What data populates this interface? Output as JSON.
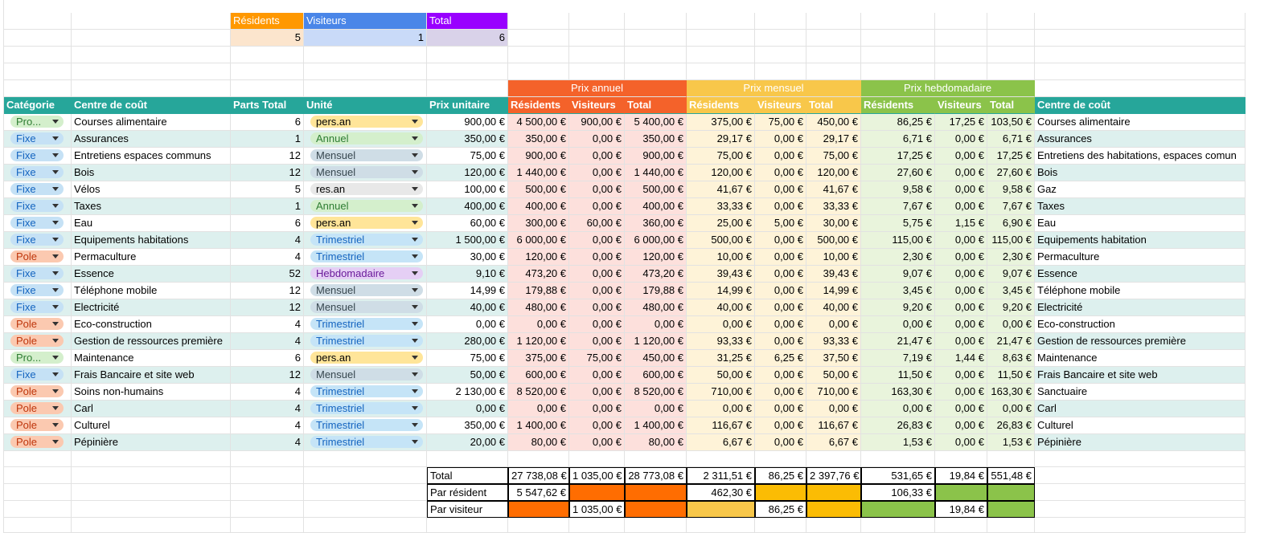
{
  "summary_top": {
    "headers": [
      "Résidents",
      "Visiteurs",
      "Total"
    ],
    "values": [
      "5",
      "1",
      "6"
    ],
    "header_colors": [
      "#ff9800",
      "#4a86e8",
      "#9900ff"
    ],
    "value_colors": [
      "#fce5cd",
      "#c9daf8",
      "#d9d2e9"
    ]
  },
  "groups": [
    {
      "label": "Prix annuel",
      "color": "#f4622a"
    },
    {
      "label": "Prix mensuel",
      "color": "#f8c74a"
    },
    {
      "label": "Prix hebdomadaire",
      "color": "#8bc34a"
    }
  ],
  "headers": [
    "Catégorie",
    "Centre de coût",
    "Parts Total",
    "Unité",
    "Prix unitaire",
    "Résidents",
    "Visiteurs",
    "Total",
    "Résidents",
    "Visiteurs",
    "Total",
    "Résidents",
    "Visiteurs",
    "Total",
    "Centre de coût"
  ],
  "colors": {
    "header_bg": "#26a69a",
    "band": "#ddf0ee",
    "annual_tint": "#fde0dc",
    "monthly_tint": "#fef3d8",
    "weekly_tint": "#e9f4dc"
  },
  "category_styles": {
    "Pro...": {
      "bg": "#d4efcc",
      "fg": "#2e7d32"
    },
    "Fixe": {
      "bg": "#c5e1f5",
      "fg": "#1565c0"
    },
    "Pole": {
      "bg": "#fbc9b0",
      "fg": "#bf360c"
    }
  },
  "unit_styles": {
    "pers.an": {
      "bg": "#ffe599",
      "fg": "#000000"
    },
    "Annuel": {
      "bg": "#d4efcc",
      "fg": "#2e7d32"
    },
    "Mensuel": {
      "bg": "#cfdde6",
      "fg": "#37474f"
    },
    "res.an": {
      "bg": "#e8e8e8",
      "fg": "#000000"
    },
    "Trimestriel": {
      "bg": "#c5e4f7",
      "fg": "#1565c0"
    },
    "Hebdomadaire": {
      "bg": "#e5cff5",
      "fg": "#6a1b9a"
    }
  },
  "rows": [
    [
      "Pro...",
      "Courses alimentaire",
      "6",
      "pers.an",
      "900,00 €",
      "4 500,00 €",
      "900,00 €",
      "5 400,00 €",
      "375,00 €",
      "75,00 €",
      "450,00 €",
      "86,25 €",
      "17,25 €",
      "103,50 €",
      "Courses alimentaire"
    ],
    [
      "Fixe",
      "Assurances",
      "1",
      "Annuel",
      "350,00 €",
      "350,00 €",
      "0,00 €",
      "350,00 €",
      "29,17 €",
      "0,00 €",
      "29,17 €",
      "6,71 €",
      "0,00 €",
      "6,71 €",
      "Assurances"
    ],
    [
      "Fixe",
      "Entretiens espaces communs",
      "12",
      "Mensuel",
      "75,00 €",
      "900,00 €",
      "0,00 €",
      "900,00 €",
      "75,00 €",
      "0,00 €",
      "75,00 €",
      "17,25 €",
      "0,00 €",
      "17,25 €",
      "Entretiens des habitations, espaces comun"
    ],
    [
      "Fixe",
      "Bois",
      "12",
      "Mensuel",
      "120,00 €",
      "1 440,00 €",
      "0,00 €",
      "1 440,00 €",
      "120,00 €",
      "0,00 €",
      "120,00 €",
      "27,60 €",
      "0,00 €",
      "27,60 €",
      "Bois"
    ],
    [
      "Fixe",
      "Vélos",
      "5",
      "res.an",
      "100,00 €",
      "500,00 €",
      "0,00 €",
      "500,00 €",
      "41,67 €",
      "0,00 €",
      "41,67 €",
      "9,58 €",
      "0,00 €",
      "9,58 €",
      "Gaz"
    ],
    [
      "Fixe",
      "Taxes",
      "1",
      "Annuel",
      "400,00 €",
      "400,00 €",
      "0,00 €",
      "400,00 €",
      "33,33 €",
      "0,00 €",
      "33,33 €",
      "7,67 €",
      "0,00 €",
      "7,67 €",
      "Taxes"
    ],
    [
      "Fixe",
      "Eau",
      "6",
      "pers.an",
      "60,00 €",
      "300,00 €",
      "60,00 €",
      "360,00 €",
      "25,00 €",
      "5,00 €",
      "30,00 €",
      "5,75 €",
      "1,15 €",
      "6,90 €",
      "Eau"
    ],
    [
      "Fixe",
      "Equipements habitations",
      "4",
      "Trimestriel",
      "1 500,00 €",
      "6 000,00 €",
      "0,00 €",
      "6 000,00 €",
      "500,00 €",
      "0,00 €",
      "500,00 €",
      "115,00 €",
      "0,00 €",
      "115,00 €",
      "Equipements habitation"
    ],
    [
      "Pole",
      "Permaculture",
      "4",
      "Trimestriel",
      "30,00 €",
      "120,00 €",
      "0,00 €",
      "120,00 €",
      "10,00 €",
      "0,00 €",
      "10,00 €",
      "2,30 €",
      "0,00 €",
      "2,30 €",
      "Permaculture"
    ],
    [
      "Fixe",
      "Essence",
      "52",
      "Hebdomadaire",
      "9,10 €",
      "473,20 €",
      "0,00 €",
      "473,20 €",
      "39,43 €",
      "0,00 €",
      "39,43 €",
      "9,07 €",
      "0,00 €",
      "9,07 €",
      "Essence"
    ],
    [
      "Fixe",
      "Téléphone mobile",
      "12",
      "Mensuel",
      "14,99 €",
      "179,88 €",
      "0,00 €",
      "179,88 €",
      "14,99 €",
      "0,00 €",
      "14,99 €",
      "3,45 €",
      "0,00 €",
      "3,45 €",
      "Téléphone mobile"
    ],
    [
      "Fixe",
      "Electricité",
      "12",
      "Mensuel",
      "40,00 €",
      "480,00 €",
      "0,00 €",
      "480,00 €",
      "40,00 €",
      "0,00 €",
      "40,00 €",
      "9,20 €",
      "0,00 €",
      "9,20 €",
      "Electricité"
    ],
    [
      "Pole",
      "Eco-construction",
      "4",
      "Trimestriel",
      "0,00 €",
      "0,00 €",
      "0,00 €",
      "0,00 €",
      "0,00 €",
      "0,00 €",
      "0,00 €",
      "0,00 €",
      "0,00 €",
      "0,00 €",
      "Eco-construction"
    ],
    [
      "Pole",
      "Gestion de ressources première",
      "4",
      "Trimestriel",
      "280,00 €",
      "1 120,00 €",
      "0,00 €",
      "1 120,00 €",
      "93,33 €",
      "0,00 €",
      "93,33 €",
      "21,47 €",
      "0,00 €",
      "21,47 €",
      "Gestion de ressources première"
    ],
    [
      "Pro...",
      "Maintenance",
      "6",
      "pers.an",
      "75,00 €",
      "375,00 €",
      "75,00 €",
      "450,00 €",
      "31,25 €",
      "6,25 €",
      "37,50 €",
      "7,19 €",
      "1,44 €",
      "8,63 €",
      "Maintenance"
    ],
    [
      "Fixe",
      "Frais Bancaire et site web",
      "12",
      "Mensuel",
      "50,00 €",
      "600,00 €",
      "0,00 €",
      "600,00 €",
      "50,00 €",
      "0,00 €",
      "50,00 €",
      "11,50 €",
      "0,00 €",
      "11,50 €",
      "Frais Bancaire et site web"
    ],
    [
      "Pole",
      "Soins non-humains",
      "4",
      "Trimestriel",
      "2 130,00 €",
      "8 520,00 €",
      "0,00 €",
      "8 520,00 €",
      "710,00 €",
      "0,00 €",
      "710,00 €",
      "163,30 €",
      "0,00 €",
      "163,30 €",
      "Sanctuaire"
    ],
    [
      "Pole",
      "Carl",
      "4",
      "Trimestriel",
      "0,00 €",
      "0,00 €",
      "0,00 €",
      "0,00 €",
      "0,00 €",
      "0,00 €",
      "0,00 €",
      "0,00 €",
      "0,00 €",
      "0,00 €",
      "Carl"
    ],
    [
      "Pole",
      "Culturel",
      "4",
      "Trimestriel",
      "350,00 €",
      "1 400,00 €",
      "0,00 €",
      "1 400,00 €",
      "116,67 €",
      "0,00 €",
      "116,67 €",
      "26,83 €",
      "0,00 €",
      "26,83 €",
      "Culturel"
    ],
    [
      "Pole",
      "Pépinière",
      "4",
      "Trimestriel",
      "20,00 €",
      "80,00 €",
      "0,00 €",
      "80,00 €",
      "6,67 €",
      "0,00 €",
      "6,67 €",
      "1,53 €",
      "0,00 €",
      "1,53 €",
      "Pépinière"
    ]
  ],
  "totals": [
    {
      "label": "Total",
      "cells": [
        {
          "v": "27 738,08 €",
          "bg": "#ffffff"
        },
        {
          "v": "1 035,00 €",
          "bg": "#ffffff"
        },
        {
          "v": "28 773,08 €",
          "bg": "#ffffff"
        },
        {
          "v": "2 311,51 €",
          "bg": "#ffffff"
        },
        {
          "v": "86,25 €",
          "bg": "#ffffff"
        },
        {
          "v": "2 397,76 €",
          "bg": "#ffffff"
        },
        {
          "v": "531,65 €",
          "bg": "#ffffff"
        },
        {
          "v": "19,84 €",
          "bg": "#ffffff"
        },
        {
          "v": "551,48 €",
          "bg": "#ffffff"
        }
      ]
    },
    {
      "label": "Par résident",
      "cells": [
        {
          "v": "5 547,62 €",
          "bg": "#ffffff"
        },
        {
          "v": "",
          "bg": "#ff6d01"
        },
        {
          "v": "",
          "bg": "#ff6d01"
        },
        {
          "v": "462,30 €",
          "bg": "#ffffff"
        },
        {
          "v": "",
          "bg": "#fbbc04"
        },
        {
          "v": "",
          "bg": "#fbbc04"
        },
        {
          "v": "106,33 €",
          "bg": "#ffffff"
        },
        {
          "v": "",
          "bg": "#8bc34a"
        },
        {
          "v": "",
          "bg": "#8bc34a"
        }
      ]
    },
    {
      "label": "Par visiteur",
      "cells": [
        {
          "v": "",
          "bg": "#ff6d01"
        },
        {
          "v": "1 035,00 €",
          "bg": "#ffffff"
        },
        {
          "v": "",
          "bg": "#ff6d01"
        },
        {
          "v": "",
          "bg": "#f8c74a"
        },
        {
          "v": "86,25 €",
          "bg": "#ffffff"
        },
        {
          "v": "",
          "bg": "#fbbc04"
        },
        {
          "v": "",
          "bg": "#8bc34a"
        },
        {
          "v": "19,84 €",
          "bg": "#ffffff"
        },
        {
          "v": "",
          "bg": "#8bc34a"
        }
      ]
    }
  ]
}
